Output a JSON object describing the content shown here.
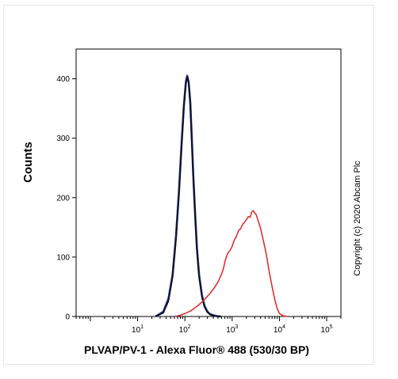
{
  "chart_data": {
    "type": "line",
    "title": "",
    "xlabel": "PLVAP/PV-1 - Alexa Fluor® 488  (530/30 BP)",
    "ylabel": "Counts",
    "x_scale": "log",
    "xlim": [
      0.5,
      200000
    ],
    "ylim": [
      0,
      450
    ],
    "x_ticks": [
      {
        "base": "10",
        "exp": "1",
        "value": 10
      },
      {
        "base": "10",
        "exp": "2",
        "value": 100
      },
      {
        "base": "10",
        "exp": "3",
        "value": 1000
      },
      {
        "base": "10",
        "exp": "4",
        "value": 10000
      },
      {
        "base": "10",
        "exp": "5",
        "value": 100000
      }
    ],
    "y_ticks": [
      "0",
      "100",
      "200",
      "300",
      "400"
    ],
    "y_tick_values": [
      0,
      100,
      200,
      300,
      400
    ],
    "grid": false,
    "legend": null,
    "series": [
      {
        "color": "#1c2a8c",
        "x": [
          24,
          35,
          45,
          55,
          65,
          75,
          85,
          95,
          105,
          112,
          120,
          130,
          140,
          150,
          165,
          180,
          200,
          230,
          260,
          300,
          340,
          400,
          480,
          580
        ],
        "values": [
          0,
          8,
          30,
          70,
          135,
          210,
          290,
          355,
          395,
          405,
          395,
          360,
          300,
          240,
          170,
          115,
          70,
          35,
          18,
          8,
          4,
          2,
          0.5,
          0
        ]
      },
      {
        "color": "#111111",
        "x": [
          24,
          35,
          45,
          55,
          65,
          75,
          85,
          95,
          105,
          113,
          121,
          130,
          140,
          150,
          165,
          180,
          200,
          230,
          260,
          300,
          340,
          400,
          480,
          580
        ],
        "values": [
          0,
          6,
          26,
          66,
          130,
          205,
          284,
          350,
          392,
          402,
          392,
          355,
          295,
          236,
          166,
          110,
          66,
          32,
          16,
          7,
          3,
          1.5,
          0.3,
          0
        ]
      },
      {
        "color": "#e03030",
        "x": [
          60,
          80,
          100,
          130,
          160,
          200,
          250,
          300,
          350,
          400,
          450,
          500,
          550,
          600,
          650,
          700,
          800,
          900,
          1000,
          1100,
          1200,
          1300,
          1400,
          1500,
          1600,
          1700,
          1800,
          2000,
          2200,
          2400,
          2600,
          2800,
          3000,
          3200,
          3500,
          4000,
          4500,
          5000,
          5500,
          6000,
          7000,
          8000,
          9000,
          10000,
          12000,
          15000
        ],
        "values": [
          0,
          2,
          5,
          9,
          14,
          20,
          27,
          34,
          40,
          46,
          52,
          58,
          65,
          72,
          80,
          92,
          106,
          111,
          118,
          128,
          133,
          140,
          146,
          147,
          152,
          156,
          158,
          163,
          168,
          167,
          176,
          178,
          174,
          172,
          163,
          148,
          130,
          114,
          96,
          78,
          50,
          28,
          13,
          5,
          1,
          0
        ]
      }
    ]
  },
  "copyright": "Copyright (c) 2020 Abcam Plc"
}
